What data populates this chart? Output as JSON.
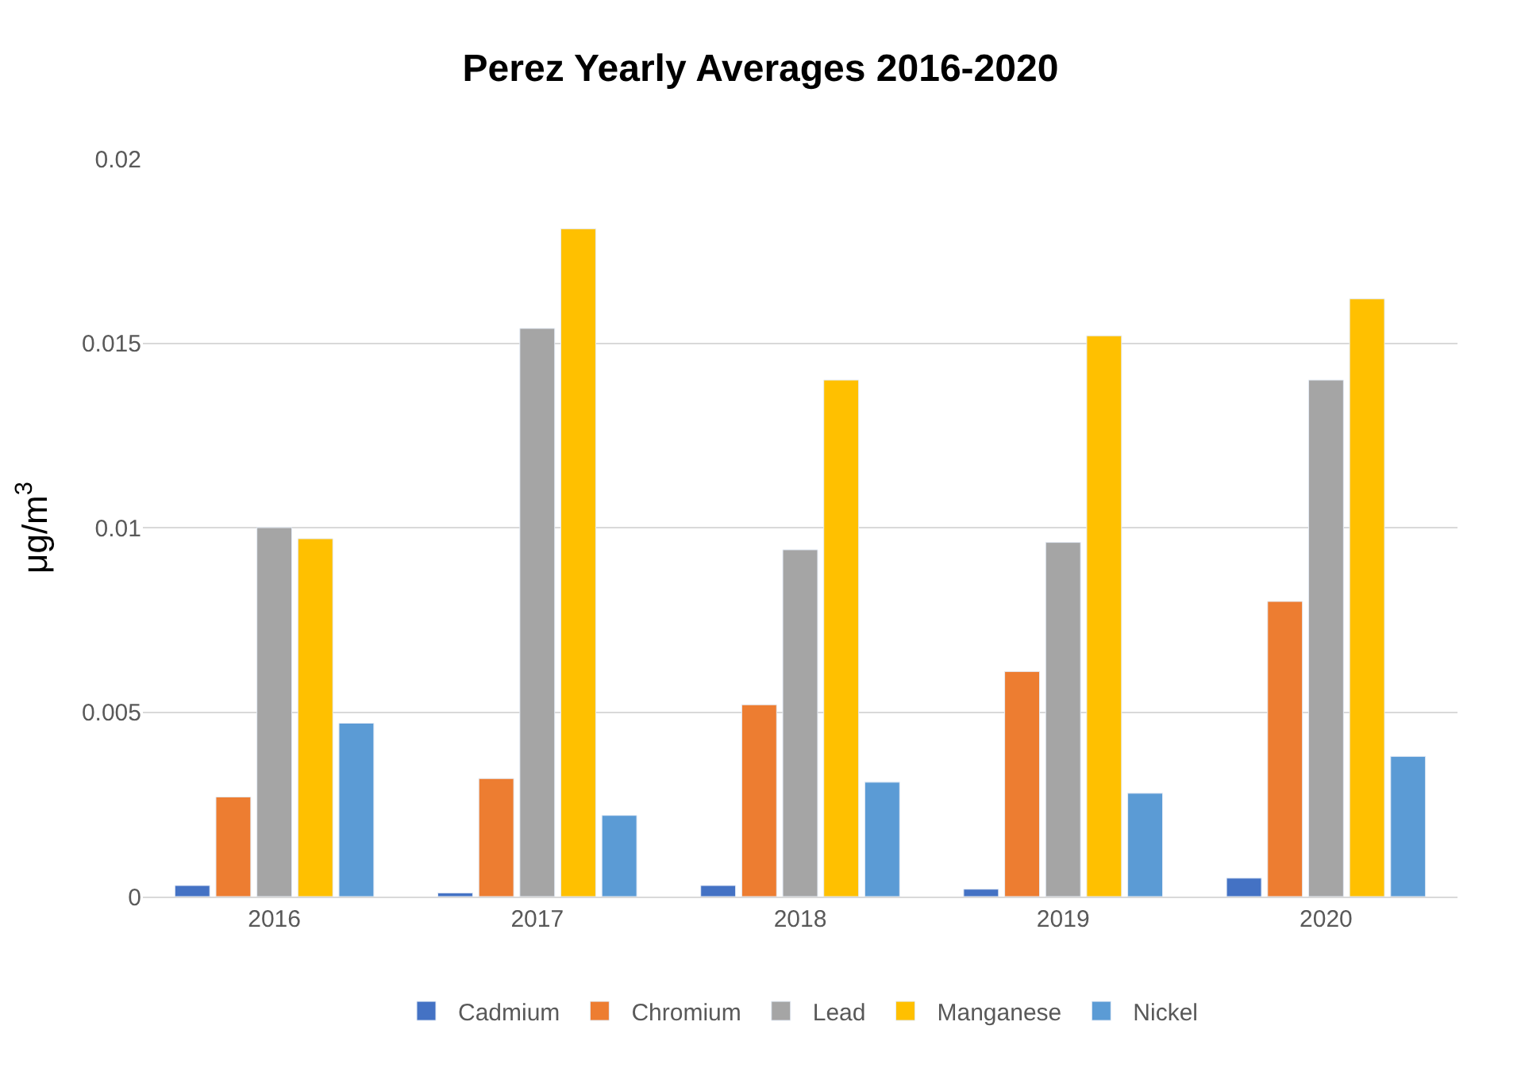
{
  "chart_data": {
    "type": "bar",
    "title": "Perez Yearly Averages 2016-2020",
    "ylabel": "μg/m$^{3}$",
    "categories": [
      "2016",
      "2017",
      "2018",
      "2019",
      "2020"
    ],
    "series": [
      {
        "name": "Cadmium",
        "color": "#4472c4",
        "values": [
          0.0003,
          0.0001,
          0.0003,
          0.0002,
          0.0005
        ]
      },
      {
        "name": "Chromium",
        "color": "#ed7d31",
        "values": [
          0.0027,
          0.0032,
          0.0052,
          0.0061,
          0.008
        ]
      },
      {
        "name": "Lead",
        "color": "#a5a5a5",
        "values": [
          0.01,
          0.0154,
          0.0094,
          0.0096,
          0.014
        ]
      },
      {
        "name": "Manganese",
        "color": "#ffc000",
        "values": [
          0.0097,
          0.0181,
          0.014,
          0.0152,
          0.0162
        ]
      },
      {
        "name": "Nickel",
        "color": "#5b9bd5",
        "values": [
          0.0047,
          0.0022,
          0.0031,
          0.0028,
          0.0038
        ]
      }
    ],
    "ylim": [
      0,
      0.02
    ],
    "yticks": [
      0,
      0.005,
      0.01,
      0.015,
      0.02
    ],
    "grid": "y",
    "legend": "bottom"
  }
}
